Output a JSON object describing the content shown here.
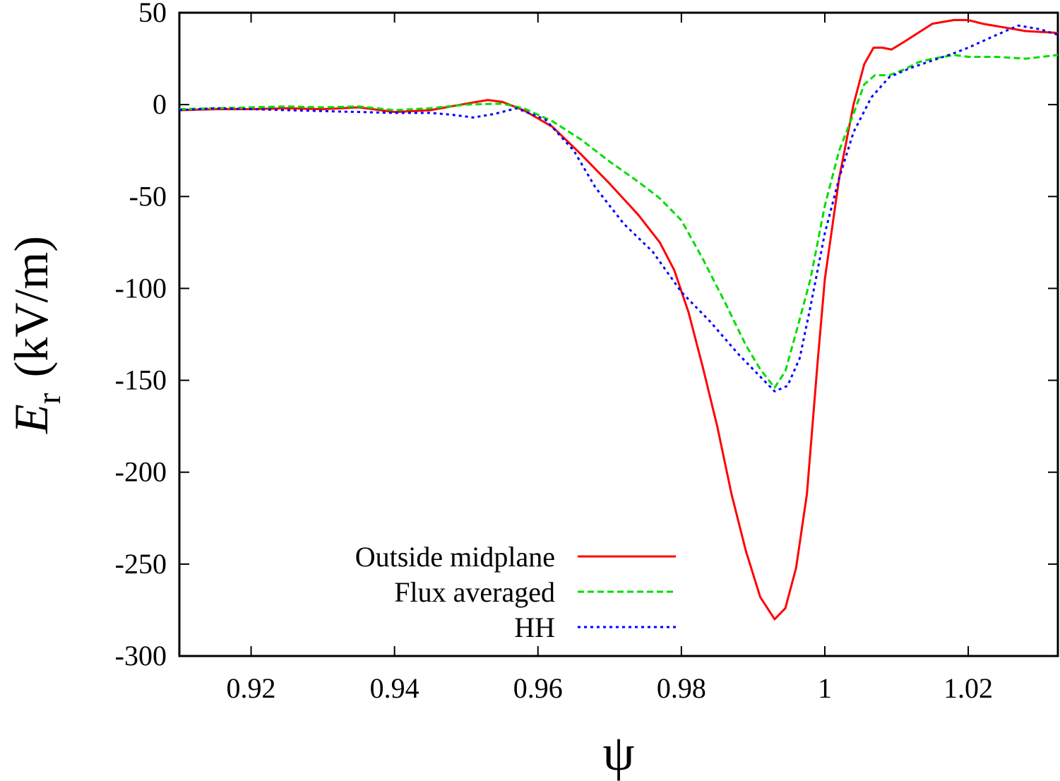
{
  "chart_data": {
    "type": "line",
    "title": "",
    "xlabel": "ψ",
    "ylabel": {
      "symbol": "E",
      "subscript": "r",
      "unit": "(kV/m)"
    },
    "xlim": [
      0.91,
      1.0325
    ],
    "ylim": [
      -300,
      50
    ],
    "x_ticks": [
      0.92,
      0.94,
      0.96,
      0.98,
      1.0,
      1.02
    ],
    "x_tick_labels": [
      "0.92",
      "0.94",
      "0.96",
      "0.98",
      "1",
      "1.02"
    ],
    "y_ticks": [
      50,
      0,
      -50,
      -100,
      -150,
      -200,
      -250,
      -300
    ],
    "y_tick_labels": [
      "50",
      "0",
      "-50",
      "-100",
      "-150",
      "-200",
      "-250",
      "-300"
    ],
    "grid": false,
    "legend_position": "bottom-center",
    "series": [
      {
        "name": "Outside midplane",
        "color": "#ff0000",
        "dash": "solid",
        "points": [
          [
            0.91,
            -3
          ],
          [
            0.915,
            -2.5
          ],
          [
            0.92,
            -2.5
          ],
          [
            0.925,
            -2
          ],
          [
            0.93,
            -2.5
          ],
          [
            0.935,
            -1.5
          ],
          [
            0.94,
            -4
          ],
          [
            0.945,
            -3
          ],
          [
            0.95,
            0.5
          ],
          [
            0.953,
            2.5
          ],
          [
            0.955,
            1.5
          ],
          [
            0.958,
            -3
          ],
          [
            0.962,
            -12
          ],
          [
            0.966,
            -27
          ],
          [
            0.97,
            -43
          ],
          [
            0.974,
            -60
          ],
          [
            0.977,
            -75
          ],
          [
            0.979,
            -90
          ],
          [
            0.981,
            -113
          ],
          [
            0.983,
            -143
          ],
          [
            0.985,
            -175
          ],
          [
            0.987,
            -212
          ],
          [
            0.989,
            -243
          ],
          [
            0.991,
            -268
          ],
          [
            0.993,
            -280
          ],
          [
            0.9945,
            -274
          ],
          [
            0.996,
            -252
          ],
          [
            0.9975,
            -212
          ],
          [
            0.999,
            -140
          ],
          [
            1.0,
            -95
          ],
          [
            1.002,
            -40
          ],
          [
            1.004,
            0
          ],
          [
            1.0055,
            22
          ],
          [
            1.0068,
            31
          ],
          [
            1.008,
            31
          ],
          [
            1.0093,
            30
          ],
          [
            1.011,
            34
          ],
          [
            1.013,
            39
          ],
          [
            1.015,
            44
          ],
          [
            1.018,
            46
          ],
          [
            1.02,
            46
          ],
          [
            1.022,
            44
          ],
          [
            1.025,
            42
          ],
          [
            1.028,
            40
          ],
          [
            1.0325,
            39
          ]
        ]
      },
      {
        "name": "Flux averaged",
        "color": "#00dd00",
        "dash": "dashed",
        "points": [
          [
            0.91,
            -2.5
          ],
          [
            0.915,
            -2
          ],
          [
            0.92,
            -1.5
          ],
          [
            0.925,
            -1
          ],
          [
            0.93,
            -1.5
          ],
          [
            0.935,
            -1
          ],
          [
            0.94,
            -3
          ],
          [
            0.945,
            -2
          ],
          [
            0.95,
            0
          ],
          [
            0.955,
            0.5
          ],
          [
            0.958,
            -2
          ],
          [
            0.962,
            -9
          ],
          [
            0.966,
            -19
          ],
          [
            0.97,
            -31
          ],
          [
            0.974,
            -42
          ],
          [
            0.977,
            -51
          ],
          [
            0.98,
            -63
          ],
          [
            0.983,
            -84
          ],
          [
            0.986,
            -107
          ],
          [
            0.989,
            -131
          ],
          [
            0.991,
            -144
          ],
          [
            0.993,
            -154
          ],
          [
            0.9945,
            -145
          ],
          [
            0.996,
            -124
          ],
          [
            0.998,
            -95
          ],
          [
            1.0,
            -55
          ],
          [
            1.002,
            -25
          ],
          [
            1.004,
            -5
          ],
          [
            1.0055,
            11
          ],
          [
            1.007,
            16
          ],
          [
            1.009,
            16
          ],
          [
            1.011,
            19
          ],
          [
            1.013,
            23
          ],
          [
            1.015,
            25
          ],
          [
            1.018,
            27
          ],
          [
            1.02,
            26
          ],
          [
            1.024,
            26
          ],
          [
            1.028,
            25
          ],
          [
            1.0325,
            27
          ]
        ]
      },
      {
        "name": "HH",
        "color": "#0000ff",
        "dash": "dotted",
        "points": [
          [
            0.91,
            -3
          ],
          [
            0.915,
            -2
          ],
          [
            0.92,
            -2.5
          ],
          [
            0.925,
            -3
          ],
          [
            0.93,
            -3.5
          ],
          [
            0.935,
            -4
          ],
          [
            0.94,
            -4.5
          ],
          [
            0.945,
            -4.5
          ],
          [
            0.948,
            -5.5
          ],
          [
            0.951,
            -7
          ],
          [
            0.954,
            -5
          ],
          [
            0.957,
            -2
          ],
          [
            0.961,
            -8
          ],
          [
            0.965,
            -25
          ],
          [
            0.968,
            -45
          ],
          [
            0.972,
            -65
          ],
          [
            0.976,
            -80
          ],
          [
            0.98,
            -102
          ],
          [
            0.984,
            -118
          ],
          [
            0.988,
            -136
          ],
          [
            0.991,
            -148
          ],
          [
            0.993,
            -156
          ],
          [
            0.9948,
            -153
          ],
          [
            0.9965,
            -138
          ],
          [
            0.998,
            -110
          ],
          [
            1.0,
            -70
          ],
          [
            1.002,
            -40
          ],
          [
            1.004,
            -15
          ],
          [
            1.0065,
            4
          ],
          [
            1.009,
            15
          ],
          [
            1.012,
            20
          ],
          [
            1.015,
            24
          ],
          [
            1.018,
            28
          ],
          [
            1.02,
            31
          ],
          [
            1.024,
            38
          ],
          [
            1.027,
            43
          ],
          [
            1.03,
            41
          ],
          [
            1.0325,
            38
          ]
        ]
      }
    ]
  }
}
